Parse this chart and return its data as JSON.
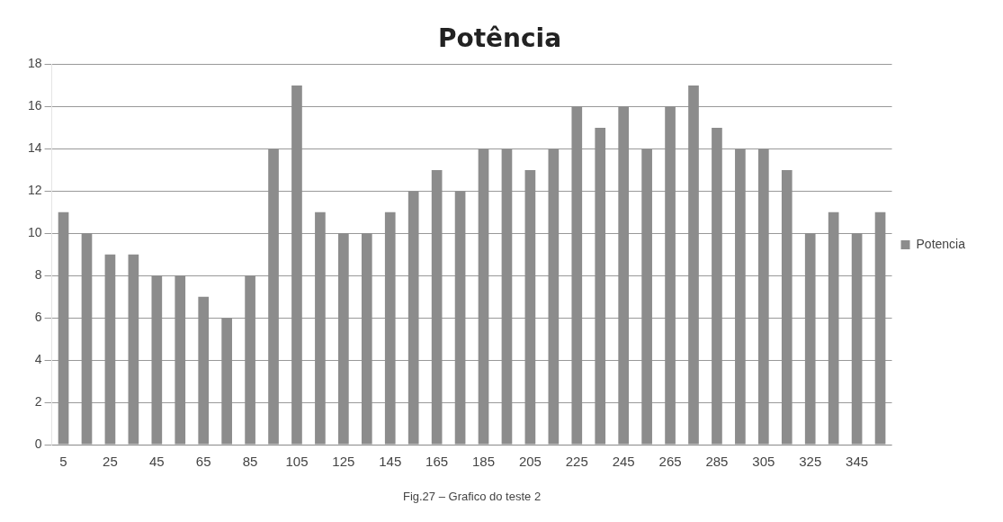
{
  "chart_data": {
    "type": "bar",
    "title": "Potência",
    "categories": [
      "5",
      null,
      "25",
      null,
      "45",
      null,
      "65",
      null,
      "85",
      null,
      "105",
      null,
      "125",
      null,
      "145",
      null,
      "165",
      null,
      "185",
      null,
      "205",
      null,
      "225",
      null,
      "245",
      null,
      "265",
      null,
      "285",
      null,
      "305",
      null,
      "325",
      null,
      "345",
      null
    ],
    "series": [
      {
        "name": "Potencia",
        "color": "#8c8c8c",
        "values": [
          11,
          10,
          9,
          9,
          8,
          8,
          7,
          6,
          8,
          14,
          17,
          11,
          10,
          10,
          11,
          12,
          13,
          12,
          14,
          14,
          13,
          14,
          16,
          15,
          16,
          14,
          16,
          17,
          15,
          14,
          14,
          13,
          10,
          11,
          10,
          11
        ]
      }
    ],
    "ylim": [
      0,
      18
    ],
    "yticks": [
      0,
      2,
      4,
      6,
      8,
      10,
      12,
      14,
      16,
      18
    ],
    "grid": "y",
    "legend": "right",
    "annotations": [
      "Fig.27 – Grafico do teste 2"
    ]
  }
}
